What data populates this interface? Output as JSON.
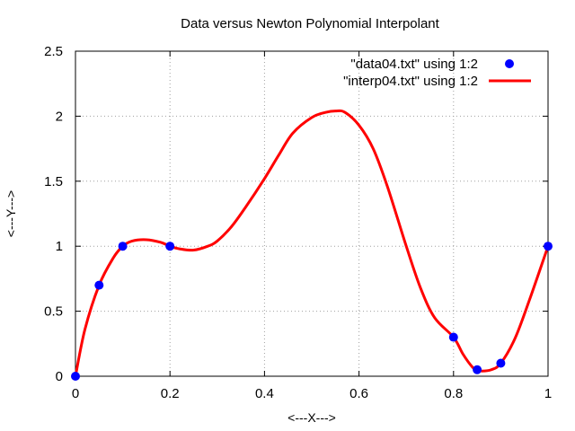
{
  "chart_data": {
    "type": "scatter",
    "title": "Data versus Newton Polynomial Interpolant",
    "xlabel": "<---X--->",
    "ylabel": "<---Y--->",
    "xlim": [
      0,
      1
    ],
    "ylim": [
      0,
      2.5
    ],
    "grid": true,
    "legend_position": "top-right",
    "x_ticks": [
      {
        "value": 0,
        "label": "0"
      },
      {
        "value": 0.2,
        "label": "0.2"
      },
      {
        "value": 0.4,
        "label": "0.4"
      },
      {
        "value": 0.6,
        "label": "0.6"
      },
      {
        "value": 0.8,
        "label": "0.8"
      },
      {
        "value": 1,
        "label": "1"
      }
    ],
    "y_ticks": [
      {
        "value": 0,
        "label": "0"
      },
      {
        "value": 0.5,
        "label": "0.5"
      },
      {
        "value": 1,
        "label": "1"
      },
      {
        "value": 1.5,
        "label": "1.5"
      },
      {
        "value": 2,
        "label": "2"
      },
      {
        "value": 2.5,
        "label": "2.5"
      }
    ],
    "series": [
      {
        "name": "\"data04.txt\" using 1:2",
        "kind": "points",
        "color": "#0000ff",
        "x": [
          0,
          0.05,
          0.1,
          0.2,
          0.8,
          0.85,
          0.9,
          1.0
        ],
        "y": [
          0,
          0.7,
          1.0,
          1.0,
          0.3,
          0.05,
          0.1,
          1.0
        ]
      },
      {
        "name": "\"interp04.txt\" using 1:2",
        "kind": "line",
        "color": "#ff0000",
        "x": [
          0,
          0.02,
          0.05,
          0.08,
          0.1,
          0.12,
          0.15,
          0.18,
          0.2,
          0.22,
          0.25,
          0.28,
          0.3,
          0.33,
          0.36,
          0.4,
          0.43,
          0.46,
          0.5,
          0.53,
          0.55,
          0.57,
          0.6,
          0.63,
          0.66,
          0.7,
          0.73,
          0.76,
          0.8,
          0.82,
          0.84,
          0.85,
          0.86,
          0.88,
          0.9,
          0.93,
          0.96,
          1.0
        ],
        "y": [
          0,
          0.36,
          0.7,
          0.91,
          1.0,
          1.04,
          1.05,
          1.03,
          1.0,
          0.98,
          0.97,
          1.0,
          1.04,
          1.15,
          1.3,
          1.52,
          1.7,
          1.87,
          1.99,
          2.03,
          2.04,
          2.03,
          1.93,
          1.75,
          1.46,
          1.0,
          0.68,
          0.45,
          0.3,
          0.17,
          0.07,
          0.05,
          0.04,
          0.05,
          0.1,
          0.29,
          0.58,
          1.0
        ]
      }
    ]
  }
}
